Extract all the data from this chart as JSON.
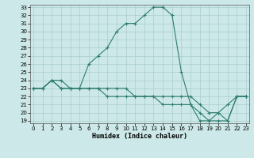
{
  "xlabel": "Humidex (Indice chaleur)",
  "x": [
    0,
    1,
    2,
    3,
    4,
    5,
    6,
    7,
    8,
    9,
    10,
    11,
    12,
    13,
    14,
    15,
    16,
    17,
    18,
    19,
    20,
    21,
    22,
    23
  ],
  "line1": [
    23,
    23,
    24,
    24,
    23,
    23,
    26,
    27,
    28,
    30,
    31,
    31,
    32,
    33,
    33,
    32,
    25,
    21,
    19,
    19,
    20,
    21,
    22,
    22
  ],
  "line2": [
    23,
    23,
    24,
    23,
    23,
    23,
    23,
    23,
    23,
    23,
    23,
    22,
    22,
    22,
    22,
    22,
    22,
    22,
    21,
    20,
    20,
    19,
    22,
    22
  ],
  "line3": [
    23,
    23,
    24,
    23,
    23,
    23,
    23,
    23,
    22,
    22,
    22,
    22,
    22,
    22,
    21,
    21,
    21,
    21,
    20,
    19,
    19,
    19,
    22,
    22
  ],
  "color": "#2e7d6e",
  "bg_color": "#cce8e8",
  "grid_color": "#aacece",
  "ylim_min": 19,
  "ylim_max": 33,
  "xlim_min": 0,
  "xlim_max": 23,
  "yticks": [
    19,
    20,
    21,
    22,
    23,
    24,
    25,
    26,
    27,
    28,
    29,
    30,
    31,
    32,
    33
  ],
  "xticks": [
    0,
    1,
    2,
    3,
    4,
    5,
    6,
    7,
    8,
    9,
    10,
    11,
    12,
    13,
    14,
    15,
    16,
    17,
    18,
    19,
    20,
    21,
    22,
    23
  ],
  "marker": "+",
  "linewidth": 0.8,
  "markersize": 3,
  "tick_labelsize": 5,
  "xlabel_fontsize": 6
}
